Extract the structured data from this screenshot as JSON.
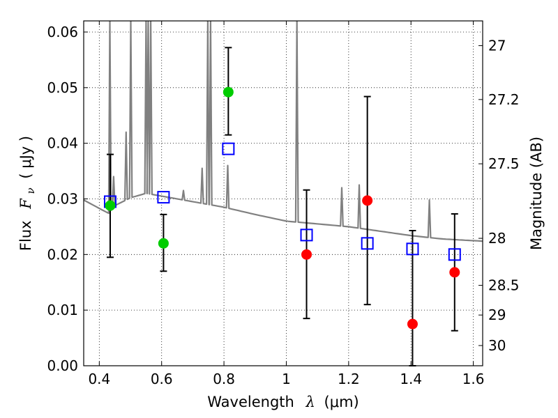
{
  "chart_data": {
    "type": "scatter",
    "title": "",
    "xlabel_text": "Wavelength",
    "xlabel_symbol": "λ",
    "xlabel_unit": "(μm)",
    "ylabel_text": "Flux",
    "ylabel_symbol": "F",
    "ylabel_subscript": "ν",
    "ylabel_unit": "( μJy )",
    "y2label": "Magnitude (AB)",
    "xlim": [
      0.35,
      1.63
    ],
    "ylim": [
      0.0,
      0.062
    ],
    "grid": true,
    "x_ticks": [
      0.4,
      0.6,
      0.8,
      1.0,
      1.2,
      1.4,
      1.6
    ],
    "x_tick_labels": [
      "0.4",
      "0.6",
      "0.8",
      "1",
      "1.2",
      "1.4",
      "1.6"
    ],
    "y_ticks": [
      0.0,
      0.01,
      0.02,
      0.03,
      0.04,
      0.05,
      0.06
    ],
    "y_tick_labels": [
      "0.00",
      "0.01",
      "0.02",
      "0.03",
      "0.04",
      "0.05",
      "0.06"
    ],
    "y2_ticks": [
      {
        "mag": 27,
        "label": "27"
      },
      {
        "mag": 27.2,
        "label": "27.2"
      },
      {
        "mag": 27.5,
        "label": "27.5"
      },
      {
        "mag": 28,
        "label": "28"
      },
      {
        "mag": 28.5,
        "label": "28.5"
      },
      {
        "mag": 29,
        "label": "29"
      },
      {
        "mag": 30,
        "label": "30"
      }
    ],
    "series": [
      {
        "kind": "model-spectrum",
        "color": "#808080",
        "continuum": [
          [
            0.35,
            0.0298
          ],
          [
            0.43,
            0.0274
          ],
          [
            0.45,
            0.0288
          ],
          [
            0.5,
            0.0302
          ],
          [
            0.55,
            0.031
          ],
          [
            0.6,
            0.0305
          ],
          [
            0.7,
            0.0295
          ],
          [
            0.8,
            0.0285
          ],
          [
            0.9,
            0.0272
          ],
          [
            1.0,
            0.026
          ],
          [
            1.1,
            0.0255
          ],
          [
            1.2,
            0.025
          ],
          [
            1.3,
            0.0242
          ],
          [
            1.4,
            0.0234
          ],
          [
            1.5,
            0.0228
          ],
          [
            1.63,
            0.0224
          ]
        ],
        "emission_lines": [
          {
            "x": 0.434,
            "peak": 0.062
          },
          {
            "x": 0.446,
            "peak": 0.034
          },
          {
            "x": 0.486,
            "peak": 0.042
          },
          {
            "x": 0.501,
            "peak": 0.062
          },
          {
            "x": 0.55,
            "peak": 0.062
          },
          {
            "x": 0.557,
            "peak": 0.062
          },
          {
            "x": 0.565,
            "peak": 0.062
          },
          {
            "x": 0.67,
            "peak": 0.0315
          },
          {
            "x": 0.73,
            "peak": 0.0355
          },
          {
            "x": 0.748,
            "peak": 0.062
          },
          {
            "x": 0.757,
            "peak": 0.062
          },
          {
            "x": 0.812,
            "peak": 0.036
          },
          {
            "x": 1.034,
            "peak": 0.062
          },
          {
            "x": 1.178,
            "peak": 0.032
          },
          {
            "x": 1.234,
            "peak": 0.0325
          },
          {
            "x": 1.459,
            "peak": 0.0298
          }
        ]
      },
      {
        "kind": "model-photometry",
        "marker": "square",
        "color": "#0000ff",
        "points": [
          {
            "x": 0.435,
            "y": 0.0295
          },
          {
            "x": 0.606,
            "y": 0.0303
          },
          {
            "x": 0.814,
            "y": 0.039
          },
          {
            "x": 1.065,
            "y": 0.0235
          },
          {
            "x": 1.26,
            "y": 0.022
          },
          {
            "x": 1.405,
            "y": 0.021
          },
          {
            "x": 1.54,
            "y": 0.02
          }
        ]
      },
      {
        "kind": "observed-optical",
        "marker": "circle",
        "color": "#00cc00",
        "points": [
          {
            "x": 0.435,
            "y": 0.0288,
            "ylo": 0.0195,
            "yhi": 0.038
          },
          {
            "x": 0.606,
            "y": 0.022,
            "ylo": 0.017,
            "yhi": 0.0272
          },
          {
            "x": 0.814,
            "y": 0.0492,
            "ylo": 0.0415,
            "yhi": 0.0572
          }
        ]
      },
      {
        "kind": "observed-nir",
        "marker": "circle",
        "color": "#ff0000",
        "points": [
          {
            "x": 1.065,
            "y": 0.02,
            "ylo": 0.0085,
            "yhi": 0.0316
          },
          {
            "x": 1.26,
            "y": 0.0297,
            "ylo": 0.011,
            "yhi": 0.0484
          },
          {
            "x": 1.405,
            "y": 0.0075,
            "ylo": 0.0,
            "yhi": 0.0243
          },
          {
            "x": 1.54,
            "y": 0.0168,
            "ylo": 0.0063,
            "yhi": 0.0273
          }
        ]
      }
    ]
  }
}
